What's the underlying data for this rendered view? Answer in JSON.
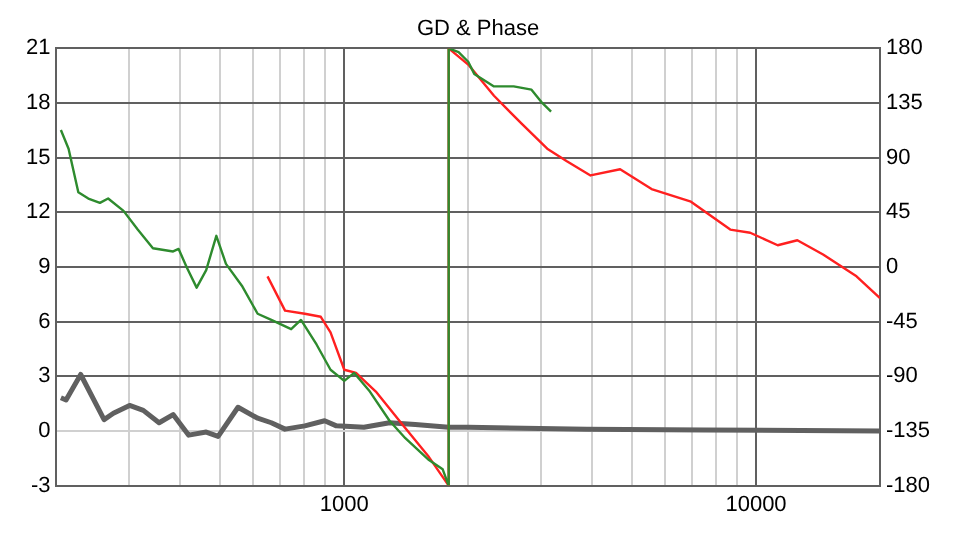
{
  "chart_data": {
    "type": "line",
    "title": "GD & Phase",
    "log": "x",
    "grid": true,
    "legend": false,
    "marker": "none",
    "line_style": "solid",
    "xlim": [
      200,
      20000
    ],
    "xticks": [
      {
        "value": 200,
        "label": null
      },
      {
        "value": 300,
        "label": null
      },
      {
        "value": 400,
        "label": null
      },
      {
        "value": 500,
        "label": null
      },
      {
        "value": 600,
        "label": null
      },
      {
        "value": 700,
        "label": null
      },
      {
        "value": 800,
        "label": null
      },
      {
        "value": 900,
        "label": null
      },
      1000,
      {
        "value": 2000,
        "label": null
      },
      {
        "value": 3000,
        "label": null
      },
      {
        "value": 4000,
        "label": null
      },
      {
        "value": 5000,
        "label": null
      },
      {
        "value": 6000,
        "label": null
      },
      {
        "value": 7000,
        "label": null
      },
      {
        "value": 8000,
        "label": null
      },
      {
        "value": 9000,
        "label": null
      },
      10000,
      {
        "value": 20000,
        "label": null
      }
    ],
    "ylim": [
      -3,
      21
    ],
    "yticks": [
      -3,
      0,
      3,
      6,
      9,
      12,
      15,
      18,
      21
    ],
    "y2lim": [
      -180,
      180
    ],
    "y2ticks": [
      -180,
      -135,
      -90,
      -45,
      0,
      45,
      90,
      135,
      180
    ],
    "series": [
      {
        "color": "#2e8b2e",
        "axis": "y2",
        "x": [
          205,
          214,
          226,
          239,
          255,
          267,
          291,
          315,
          343,
          384,
          396,
          414,
          438,
          462,
          489,
          516,
          564,
          616,
          665,
          743,
          785,
          857,
          926,
          1000,
          1057,
          1154,
          1288,
          1407,
          1606,
          1734,
          1793,
          1793,
          1895,
          2000,
          2069,
          2310,
          2579,
          2849,
          3008,
          3179
        ],
        "values": [
          112.8,
          97.4,
          61.5,
          56.4,
          52.8,
          56.4,
          46.2,
          30.8,
          15.4,
          12.8,
          14.9,
          0,
          -17,
          -2.6,
          25.7,
          2.6,
          -15.4,
          -38.5,
          -43.6,
          -51.2,
          -43.6,
          -64,
          -84.6,
          -93.8,
          -87.2,
          -102.6,
          -126.6,
          -141,
          -159,
          -166.6,
          -180,
          180,
          177,
          169,
          159,
          148.7,
          148.7,
          146,
          136,
          128
        ]
      },
      {
        "color": "#ff2020",
        "axis": "y2",
        "x": [
          651,
          718,
          802,
          877,
          926,
          1000,
          1068,
          1193,
          1392,
          1606,
          1793,
          1793,
          2000,
          2310,
          2696,
          3111,
          3472,
          3963,
          4677,
          5576,
          6950,
          8660,
          9680,
          11290,
          12600,
          14550,
          17540,
          20000
        ],
        "values": [
          -7.7,
          -35.9,
          -38.5,
          -41,
          -53.8,
          -84.6,
          -87.2,
          -102.6,
          -130.8,
          -156.5,
          -180,
          180,
          166.7,
          141,
          118,
          97.4,
          87,
          75.4,
          80.5,
          64.2,
          53.8,
          30.8,
          28.2,
          17.9,
          22,
          10.3,
          -7.7,
          -25.6
        ]
      },
      {
        "color": "#606060",
        "x": [
          205,
          211,
          229,
          261,
          275,
          301,
          325,
          355,
          384,
          419,
          462,
          494,
          552,
          616,
          665,
          718,
          802,
          896,
          957,
          1116,
          1288,
          1487,
          1793,
          2000,
          3880,
          7520,
          20000
        ],
        "values": [
          1.82,
          1.7,
          3.1,
          0.62,
          0.97,
          1.4,
          1.13,
          0.45,
          0.9,
          -0.23,
          -0.06,
          -0.3,
          1.3,
          0.7,
          0.45,
          0.1,
          0.28,
          0.56,
          0.28,
          0.2,
          0.45,
          0.35,
          0.2,
          0.2,
          0.1,
          0.05,
          0
        ]
      }
    ]
  }
}
